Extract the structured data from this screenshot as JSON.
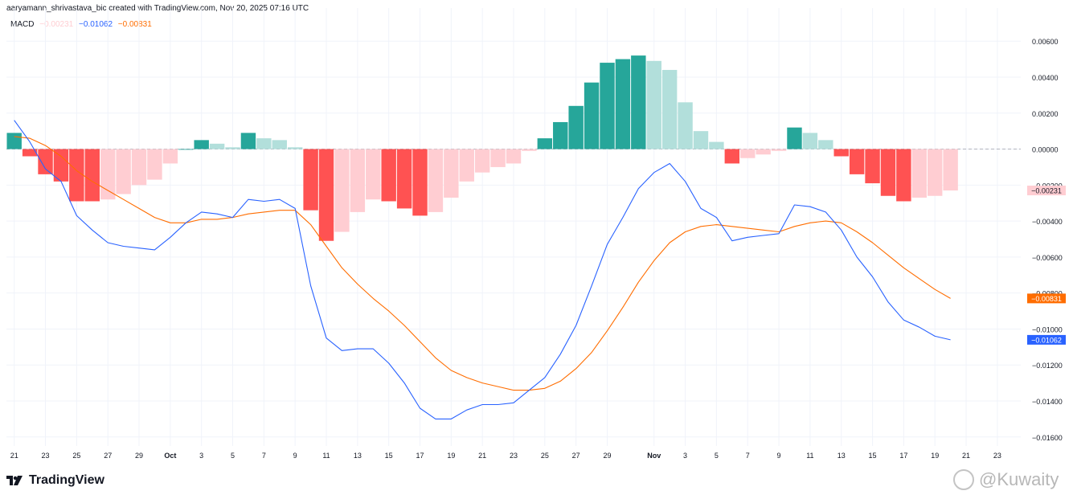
{
  "header": {
    "credit": "aaryamann_shrivastava_bic created with TradingView.com, Nov 20, 2025 07:16 UTC"
  },
  "legend": {
    "name": "MACD",
    "hist_value": "−0.00231",
    "macd_value": "−0.01062",
    "signal_value": "−0.00831"
  },
  "branding": {
    "logo_text": "TradingView",
    "watermark": "@Kuwaity"
  },
  "colors": {
    "macd": "#2962ff",
    "signal": "#ff6d00",
    "hist_pos_strong": "#26a69a",
    "hist_pos_weak": "#b2dfdb",
    "hist_neg_strong": "#ff5252",
    "hist_neg_weak": "#ffcdd2",
    "grid": "#f0f3fa",
    "zero": "#b2b5be"
  },
  "chart_data": {
    "type": "line",
    "ylim": [
      -0.0165,
      0.0065
    ],
    "y_ticks": [
      "0.00600",
      "0.00400",
      "0.00200",
      "0.00000",
      "−0.00200",
      "−0.00400",
      "−0.00600",
      "−0.00800",
      "−0.01000",
      "−0.01200",
      "−0.01400",
      "−0.01600"
    ],
    "y_tick_values": [
      0.006,
      0.004,
      0.002,
      0,
      -0.002,
      -0.004,
      -0.006,
      -0.008,
      -0.01,
      -0.012,
      -0.014,
      -0.016
    ],
    "x_ticks": [
      {
        "label": "21",
        "i": 0
      },
      {
        "label": "23",
        "i": 2
      },
      {
        "label": "25",
        "i": 4
      },
      {
        "label": "27",
        "i": 6
      },
      {
        "label": "29",
        "i": 8
      },
      {
        "label": "Oct",
        "i": 10,
        "bold": true
      },
      {
        "label": "3",
        "i": 12
      },
      {
        "label": "5",
        "i": 14
      },
      {
        "label": "7",
        "i": 16
      },
      {
        "label": "9",
        "i": 18
      },
      {
        "label": "11",
        "i": 20
      },
      {
        "label": "13",
        "i": 22
      },
      {
        "label": "15",
        "i": 24
      },
      {
        "label": "17",
        "i": 26
      },
      {
        "label": "19",
        "i": 28
      },
      {
        "label": "21",
        "i": 30
      },
      {
        "label": "23",
        "i": 32
      },
      {
        "label": "25",
        "i": 34
      },
      {
        "label": "27",
        "i": 36
      },
      {
        "label": "29",
        "i": 38
      },
      {
        "label": "Nov",
        "i": 41,
        "bold": true
      },
      {
        "label": "3",
        "i": 43
      },
      {
        "label": "5",
        "i": 45
      },
      {
        "label": "7",
        "i": 47
      },
      {
        "label": "9",
        "i": 49
      },
      {
        "label": "11",
        "i": 51
      },
      {
        "label": "13",
        "i": 53
      },
      {
        "label": "15",
        "i": 55
      },
      {
        "label": "17",
        "i": 57
      },
      {
        "label": "19",
        "i": 59
      },
      {
        "label": "21",
        "i": 61
      },
      {
        "label": "23",
        "i": 63
      }
    ],
    "n_slots": 65,
    "series": [
      {
        "name": "MACD",
        "values": [
          0.0016,
          0.0004,
          -0.0011,
          -0.0018,
          -0.0037,
          -0.0045,
          -0.0052,
          -0.0054,
          -0.0055,
          -0.0056,
          -0.0049,
          -0.0041,
          -0.0035,
          -0.0036,
          -0.0038,
          -0.0028,
          -0.0029,
          -0.0028,
          -0.0033,
          -0.0076,
          -0.0105,
          -0.0112,
          -0.0111,
          -0.0111,
          -0.0119,
          -0.013,
          -0.0144,
          -0.015,
          -0.015,
          -0.0145,
          -0.0142,
          -0.0142,
          -0.0141,
          -0.0134,
          -0.0127,
          -0.0114,
          -0.0098,
          -0.0076,
          -0.0053,
          -0.0038,
          -0.0022,
          -0.0013,
          -0.0008,
          -0.0018,
          -0.0033,
          -0.0038,
          -0.0051,
          -0.0049,
          -0.0048,
          -0.0047,
          -0.0031,
          -0.0032,
          -0.0035,
          -0.0045,
          -0.006,
          -0.0071,
          -0.0085,
          -0.0095,
          -0.0099,
          -0.0104,
          -0.0106
        ]
      },
      {
        "name": "Signal",
        "values": [
          0.0007,
          0.0006,
          0.0002,
          -0.0004,
          -0.0012,
          -0.0018,
          -0.0023,
          -0.0028,
          -0.0033,
          -0.0038,
          -0.0041,
          -0.0041,
          -0.0039,
          -0.0039,
          -0.0038,
          -0.0036,
          -0.0035,
          -0.0034,
          -0.0034,
          -0.0042,
          -0.0054,
          -0.0066,
          -0.0075,
          -0.0083,
          -0.009,
          -0.0098,
          -0.0107,
          -0.0116,
          -0.0123,
          -0.0127,
          -0.013,
          -0.0132,
          -0.0134,
          -0.0134,
          -0.0133,
          -0.0129,
          -0.0122,
          -0.0113,
          -0.0101,
          -0.0088,
          -0.0074,
          -0.0062,
          -0.0052,
          -0.0046,
          -0.0043,
          -0.0042,
          -0.0043,
          -0.0044,
          -0.0045,
          -0.0046,
          -0.0043,
          -0.0041,
          -0.004,
          -0.0041,
          -0.0046,
          -0.0052,
          -0.0059,
          -0.0066,
          -0.0072,
          -0.0078,
          -0.0083
        ]
      },
      {
        "name": "Histogram",
        "values": [
          0.0009,
          -0.0004,
          -0.0014,
          -0.0018,
          -0.0029,
          -0.0029,
          -0.0028,
          -0.0025,
          -0.002,
          -0.0017,
          -0.0008,
          0.0,
          0.0005,
          0.0003,
          0.0001,
          0.0009,
          0.0006,
          0.0005,
          0.0001,
          -0.0034,
          -0.0051,
          -0.0046,
          -0.0035,
          -0.0028,
          -0.0029,
          -0.0033,
          -0.0037,
          -0.0035,
          -0.0027,
          -0.0018,
          -0.0013,
          -0.001,
          -0.0008,
          -0.0001,
          0.0006,
          0.0015,
          0.0024,
          0.0037,
          0.0048,
          0.005,
          0.0052,
          0.0049,
          0.0044,
          0.0026,
          0.001,
          0.0004,
          -0.0008,
          -0.0005,
          -0.0003,
          -0.0001,
          0.0012,
          0.0009,
          0.0005,
          -0.0004,
          -0.0014,
          -0.0019,
          -0.0026,
          -0.0029,
          -0.0027,
          -0.0026,
          -0.0023
        ]
      }
    ]
  }
}
